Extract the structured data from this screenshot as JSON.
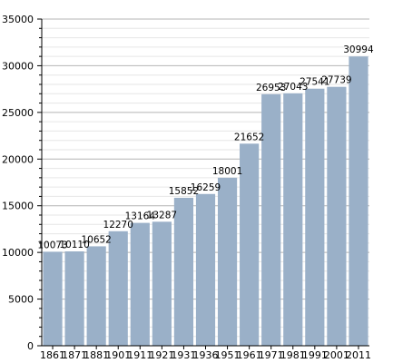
{
  "chart_data": {
    "type": "bar",
    "categories": [
      "1861",
      "1871",
      "1881",
      "1901",
      "1911",
      "1921",
      "1931",
      "1936",
      "1951",
      "1961",
      "1971",
      "1981",
      "1991",
      "2001",
      "2011"
    ],
    "values": [
      10073,
      10110,
      10652,
      12270,
      13164,
      13287,
      15852,
      16259,
      18001,
      21652,
      26953,
      27043,
      27541,
      27739,
      30994
    ],
    "value_labels": [
      "10073",
      "10110",
      "10652",
      "12270",
      "13164",
      "13287",
      "15852",
      "16259",
      "18001",
      "21652",
      "26953",
      "27043",
      "27541",
      "27739",
      "30994"
    ],
    "ylim": [
      0,
      35000
    ],
    "y_ticks": [
      0,
      5000,
      10000,
      15000,
      20000,
      25000,
      30000,
      35000
    ],
    "y_tick_labels": [
      "0",
      "5000",
      "10000",
      "15000",
      "20000",
      "25000",
      "30000",
      "35000"
    ],
    "grid": true,
    "title": "",
    "xlabel": "",
    "ylabel": "",
    "bar_color": "#9ab0c8",
    "major_grid_color": "#b4b4b4",
    "minor_grid_color": "#e6e6e6"
  }
}
